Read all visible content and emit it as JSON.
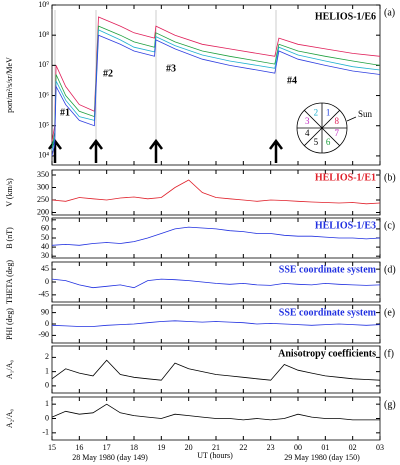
{
  "chart_data": [
    {
      "type": "line",
      "panel_label": "(a)",
      "title": "HELIOS-1/E6",
      "title_color": "#000000",
      "ylabel": "port/m²/s/sr/MeV",
      "log_y": true,
      "ylim": [
        5000,
        1000000000
      ],
      "yticks": [
        {
          "value": 10000,
          "label": "10⁴"
        },
        {
          "value": 100000,
          "label": "10⁵"
        },
        {
          "value": 1000000,
          "label": "10⁶"
        },
        {
          "value": 10000000,
          "label": "10⁷"
        },
        {
          "value": 100000000,
          "label": "10⁸"
        },
        {
          "value": 1000000000,
          "label": "10⁹"
        }
      ],
      "event_labels": [
        "#1",
        "#2",
        "#3",
        "#4"
      ],
      "sectors": [
        {
          "label": "1",
          "color": "#2040e0"
        },
        {
          "label": "8",
          "color": "#e0205a"
        },
        {
          "label": "7",
          "color": "#c020c0"
        },
        {
          "label": "6",
          "color": "#20a040"
        },
        {
          "label": "5",
          "color": "#000000"
        },
        {
          "label": "4",
          "color": "#000000"
        },
        {
          "label": "3",
          "color": "#c020c0"
        },
        {
          "label": "2",
          "color": "#20b0d0"
        }
      ],
      "sun_label": "Sun",
      "x": [
        15.0,
        15.1,
        15.15,
        15.5,
        16.0,
        16.55,
        16.7,
        17.5,
        18.0,
        18.75,
        18.8,
        19.5,
        20.5,
        21.5,
        22.5,
        23.15,
        23.3,
        24.0,
        25.0,
        26.0,
        27.0
      ],
      "series": [
        {
          "name": "ch1",
          "color": "#e0205a",
          "values": [
            30000,
            100000,
            10000000,
            2000000,
            500000,
            300000,
            400000000,
            200000000,
            120000000,
            80000000,
            200000000,
            100000000,
            50000000,
            35000000,
            25000000,
            20000000,
            80000000,
            50000000,
            35000000,
            25000000,
            20000000
          ]
        },
        {
          "name": "ch2",
          "color": "#20a040",
          "values": [
            20000,
            60000,
            5000000,
            1000000,
            300000,
            200000,
            200000000,
            100000000,
            60000000,
            40000000,
            120000000,
            60000000,
            30000000,
            20000000,
            14000000,
            11000000,
            50000000,
            30000000,
            20000000,
            14000000,
            10000000
          ]
        },
        {
          "name": "ch3",
          "color": "#20b0d0",
          "values": [
            15000,
            40000,
            3000000,
            700000,
            200000,
            150000,
            150000000,
            70000000,
            40000000,
            28000000,
            90000000,
            45000000,
            22000000,
            14000000,
            10000000,
            8000000,
            40000000,
            22000000,
            14000000,
            9000000,
            7000000
          ]
        },
        {
          "name": "ch4",
          "color": "#3040e0",
          "values": [
            10000,
            25000,
            2000000,
            500000,
            150000,
            100000,
            100000000,
            50000000,
            30000000,
            20000000,
            70000000,
            35000000,
            16000000,
            10000000,
            7000000,
            5500000,
            30000000,
            16000000,
            10000000,
            6500000,
            5000000
          ]
        }
      ]
    },
    {
      "type": "line",
      "panel_label": "(b)",
      "title": "HELIOS-1/E1",
      "title_color": "#e0202a",
      "ylabel": "V (km/s)",
      "ylim": [
        190,
        370
      ],
      "yticks": [
        200,
        250,
        300,
        350
      ],
      "x": [
        15,
        15.5,
        16,
        16.5,
        17,
        17.5,
        18,
        18.5,
        19,
        19.5,
        20,
        20.5,
        21,
        21.5,
        22,
        22.5,
        23,
        23.5,
        24,
        24.5,
        25,
        25.5,
        26,
        26.5,
        27
      ],
      "series": [
        {
          "name": "V",
          "color": "#e0202a",
          "values": [
            250,
            245,
            260,
            255,
            250,
            258,
            262,
            255,
            260,
            300,
            330,
            280,
            260,
            255,
            250,
            245,
            250,
            248,
            245,
            242,
            240,
            238,
            240,
            235,
            238
          ]
        }
      ]
    },
    {
      "type": "line",
      "panel_label": "(c)",
      "title": "HELIOS-1/E3",
      "title_color": "#2030e0",
      "ylabel": "B (nT)",
      "ylim": [
        28,
        72
      ],
      "yticks": [
        30,
        40,
        50,
        60,
        70
      ],
      "x": [
        15,
        15.5,
        16,
        16.5,
        17,
        17.5,
        18,
        18.5,
        19,
        19.5,
        20,
        20.5,
        21,
        21.5,
        22,
        22.5,
        23,
        23.5,
        24,
        24.5,
        25,
        25.5,
        26,
        26.5,
        27
      ],
      "series": [
        {
          "name": "B",
          "color": "#2030e0",
          "values": [
            42,
            43,
            42,
            44,
            45,
            44,
            46,
            50,
            55,
            60,
            62,
            61,
            60,
            58,
            57,
            55,
            55,
            53,
            52,
            52,
            51,
            50,
            50,
            49,
            50
          ]
        }
      ]
    },
    {
      "type": "line",
      "panel_label": "(d)",
      "title": "SSE coordinate system",
      "title_color": "#2030e0",
      "ylabel": "THETA (deg)",
      "ylim": [
        -70,
        70
      ],
      "yticks": [
        -45,
        0,
        45
      ],
      "x": [
        15,
        15.5,
        16,
        16.5,
        17,
        17.5,
        18,
        18.5,
        19,
        19.5,
        20,
        20.5,
        21,
        21.5,
        22,
        22.5,
        23,
        23.5,
        24,
        24.5,
        25,
        25.5,
        26,
        26.5,
        27
      ],
      "series": [
        {
          "name": "THETA",
          "color": "#2030e0",
          "values": [
            10,
            5,
            -10,
            -20,
            -15,
            -10,
            -20,
            5,
            10,
            8,
            5,
            0,
            -5,
            -8,
            -5,
            -10,
            -12,
            -5,
            -8,
            -10,
            -5,
            -8,
            -10,
            -12,
            -10
          ]
        }
      ]
    },
    {
      "type": "line",
      "panel_label": "(e)",
      "title": "SSE coordinate system",
      "title_color": "#2030e0",
      "ylabel": "PHI (deg)",
      "ylim": [
        -150,
        150
      ],
      "yticks": [
        -90,
        0,
        90
      ],
      "x": [
        15,
        15.5,
        16,
        16.5,
        17,
        17.5,
        18,
        18.5,
        19,
        19.5,
        20,
        20.5,
        21,
        21.5,
        22,
        22.5,
        23,
        23.5,
        24,
        24.5,
        25,
        25.5,
        26,
        26.5,
        27
      ],
      "series": [
        {
          "name": "PHI",
          "color": "#2030e0",
          "values": [
            -10,
            -15,
            -20,
            -20,
            -10,
            -5,
            0,
            10,
            20,
            25,
            20,
            15,
            20,
            15,
            10,
            0,
            5,
            0,
            -5,
            -10,
            -5,
            0,
            -5,
            -10,
            -5
          ]
        }
      ]
    },
    {
      "type": "line",
      "panel_label": "(f)",
      "title": "Anisotropy coefficients",
      "title_color": "#000000",
      "ylabel": "A₁/A₀",
      "ylim": [
        -0.5,
        2.8
      ],
      "yticks": [
        0,
        1,
        2
      ],
      "x": [
        15,
        15.5,
        16,
        16.5,
        17,
        17.5,
        18,
        18.5,
        19,
        19.5,
        20,
        20.5,
        21,
        21.5,
        22,
        22.5,
        23,
        23.5,
        24,
        24.5,
        25,
        25.5,
        26,
        26.5,
        27
      ],
      "series": [
        {
          "name": "A1",
          "color": "#000000",
          "values": [
            0.5,
            1.2,
            0.9,
            0.7,
            1.8,
            0.8,
            0.6,
            0.5,
            0.4,
            1.6,
            1.2,
            1.0,
            0.8,
            0.7,
            0.6,
            0.5,
            0.4,
            1.5,
            1.1,
            0.9,
            0.7,
            0.6,
            0.5,
            0.45,
            0.4
          ]
        }
      ]
    },
    {
      "type": "line",
      "panel_label": "(g)",
      "ylabel": "A₂/A₀",
      "ylim": [
        -1.5,
        1.5
      ],
      "yticks": [
        -1,
        0,
        1
      ],
      "xlim": [
        15,
        27
      ],
      "xticks": [
        15,
        16,
        17,
        18,
        19,
        20,
        21,
        22,
        23,
        {
          "value": 24,
          "label": "00"
        },
        {
          "value": 25,
          "label": "01"
        },
        {
          "value": 26,
          "label": "02"
        },
        {
          "value": 27,
          "label": "03"
        }
      ],
      "xlabel": "UT (hours)",
      "date_left": "28 May 1980 (day 149)",
      "date_right": "29 May 1980 (day 150)",
      "x": [
        15,
        15.5,
        16,
        16.5,
        17,
        17.5,
        18,
        18.5,
        19,
        19.5,
        20,
        20.5,
        21,
        21.5,
        22,
        22.5,
        23,
        23.5,
        24,
        24.5,
        25,
        25.5,
        26,
        26.5,
        27
      ],
      "series": [
        {
          "name": "A2",
          "color": "#000000",
          "values": [
            0.1,
            0.5,
            0.3,
            0.4,
            1.0,
            0.4,
            0.2,
            0.1,
            0.0,
            0.3,
            0.2,
            0.1,
            0.0,
            0.0,
            -0.1,
            0.0,
            -0.1,
            0.0,
            0.3,
            0.1,
            0.0,
            0.0,
            -0.1,
            -0.1,
            -0.1
          ]
        }
      ]
    }
  ]
}
